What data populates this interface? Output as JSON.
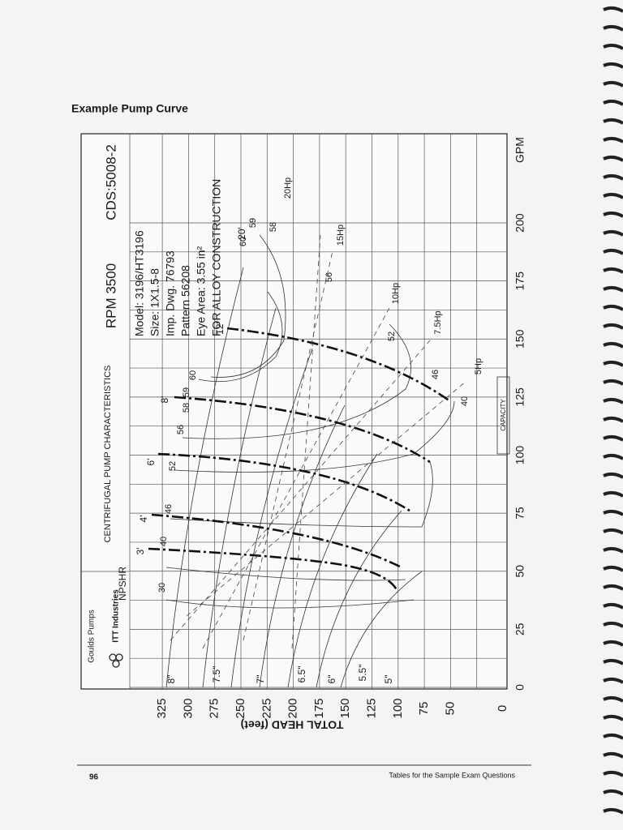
{
  "header": {
    "title": "Example Pump Curve"
  },
  "chart": {
    "brand": "Goulds Pumps",
    "company": "ITT Industries",
    "heading": "CENTRIFUGAL PUMP CHARACTERISTICS",
    "rpm": "RPM 3500",
    "cds": "CDS:5008-2",
    "specs": [
      "Model: 3196/HT3196",
      "Size: 1X1.5-8",
      "Imp. Dwg. 76793",
      "Pattern 56208",
      "Eye Area: 3.55 in²",
      "FOR ALLOY CONSTRUCTION"
    ],
    "npshr": "NPSHR",
    "head_axis": {
      "title": "TOTAL HEAD (feet)",
      "ticks": [
        0,
        50,
        75,
        100,
        125,
        150,
        175,
        200,
        225,
        250,
        275,
        300,
        325
      ]
    },
    "capacity_axis": {
      "unit": "GPM",
      "label": "CAPACITY",
      "ticks": [
        0,
        25,
        50,
        75,
        100,
        125,
        150,
        175,
        200
      ]
    },
    "diameters": [
      "8\"",
      "7.5\"",
      "7\"",
      "6.5\"",
      "6\"",
      "5.5\"",
      "5\""
    ],
    "npsh_labels": [
      "3'",
      "4'",
      "6'",
      "8'",
      "12'",
      "20'"
    ],
    "efficiencies": [
      "30",
      "40",
      "46",
      "52",
      "56",
      "58",
      "59",
      "60",
      "60",
      "59",
      "58",
      "56",
      "52",
      "46",
      "40"
    ],
    "horsepower": [
      "20Hp",
      "15Hp",
      "10Hp",
      "7.5Hp",
      "5Hp"
    ]
  },
  "footer": {
    "page": "96",
    "text": "Tables for the Sample Exam Questions"
  }
}
